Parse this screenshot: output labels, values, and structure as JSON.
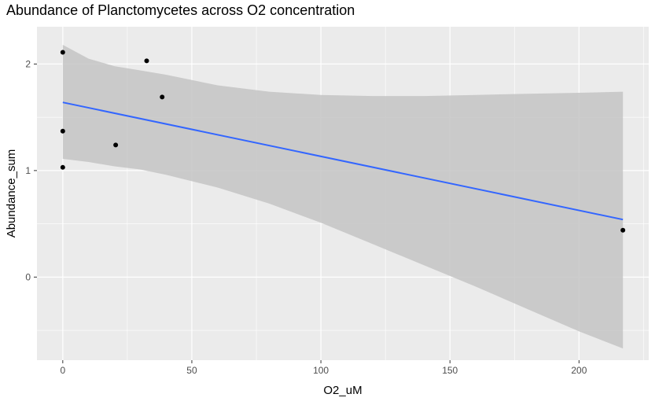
{
  "chart_data": {
    "type": "scatter",
    "title": "Abundance of Planctomycetes across O2 concentration",
    "xlabel": "O2_uM",
    "ylabel": "Abundance_sum",
    "xlim": [
      -10,
      227
    ],
    "ylim": [
      -0.78,
      2.35
    ],
    "x_ticks": [
      0,
      50,
      100,
      150,
      200
    ],
    "y_ticks": [
      0,
      1,
      2
    ],
    "grid": true,
    "legend": "none",
    "points": [
      {
        "x": 0,
        "y": 2.11
      },
      {
        "x": 0,
        "y": 1.37
      },
      {
        "x": 0,
        "y": 1.03
      },
      {
        "x": 20.5,
        "y": 1.24
      },
      {
        "x": 32.5,
        "y": 2.03
      },
      {
        "x": 38.5,
        "y": 1.69
      },
      {
        "x": 217,
        "y": 0.44
      }
    ],
    "trend_line": {
      "x": [
        0,
        217
      ],
      "y": [
        1.64,
        0.54
      ]
    },
    "confidence_band": {
      "x": [
        0,
        10,
        20,
        30,
        40,
        60,
        80,
        100,
        120,
        140,
        160,
        180,
        200,
        217
      ],
      "lower": [
        1.11,
        1.08,
        1.04,
        1.01,
        0.96,
        0.84,
        0.69,
        0.51,
        0.31,
        0.11,
        -0.09,
        -0.3,
        -0.51,
        -0.67
      ],
      "upper": [
        2.18,
        2.05,
        1.98,
        1.94,
        1.9,
        1.8,
        1.74,
        1.71,
        1.7,
        1.7,
        1.71,
        1.72,
        1.73,
        1.74
      ]
    },
    "colors": {
      "panel": "#ebebeb",
      "grid": "#ffffff",
      "band": "#c4c4c4",
      "line": "#3366ff",
      "point": "#000000",
      "tick_text": "#4d4d4d",
      "tick_mark": "#333333"
    }
  }
}
